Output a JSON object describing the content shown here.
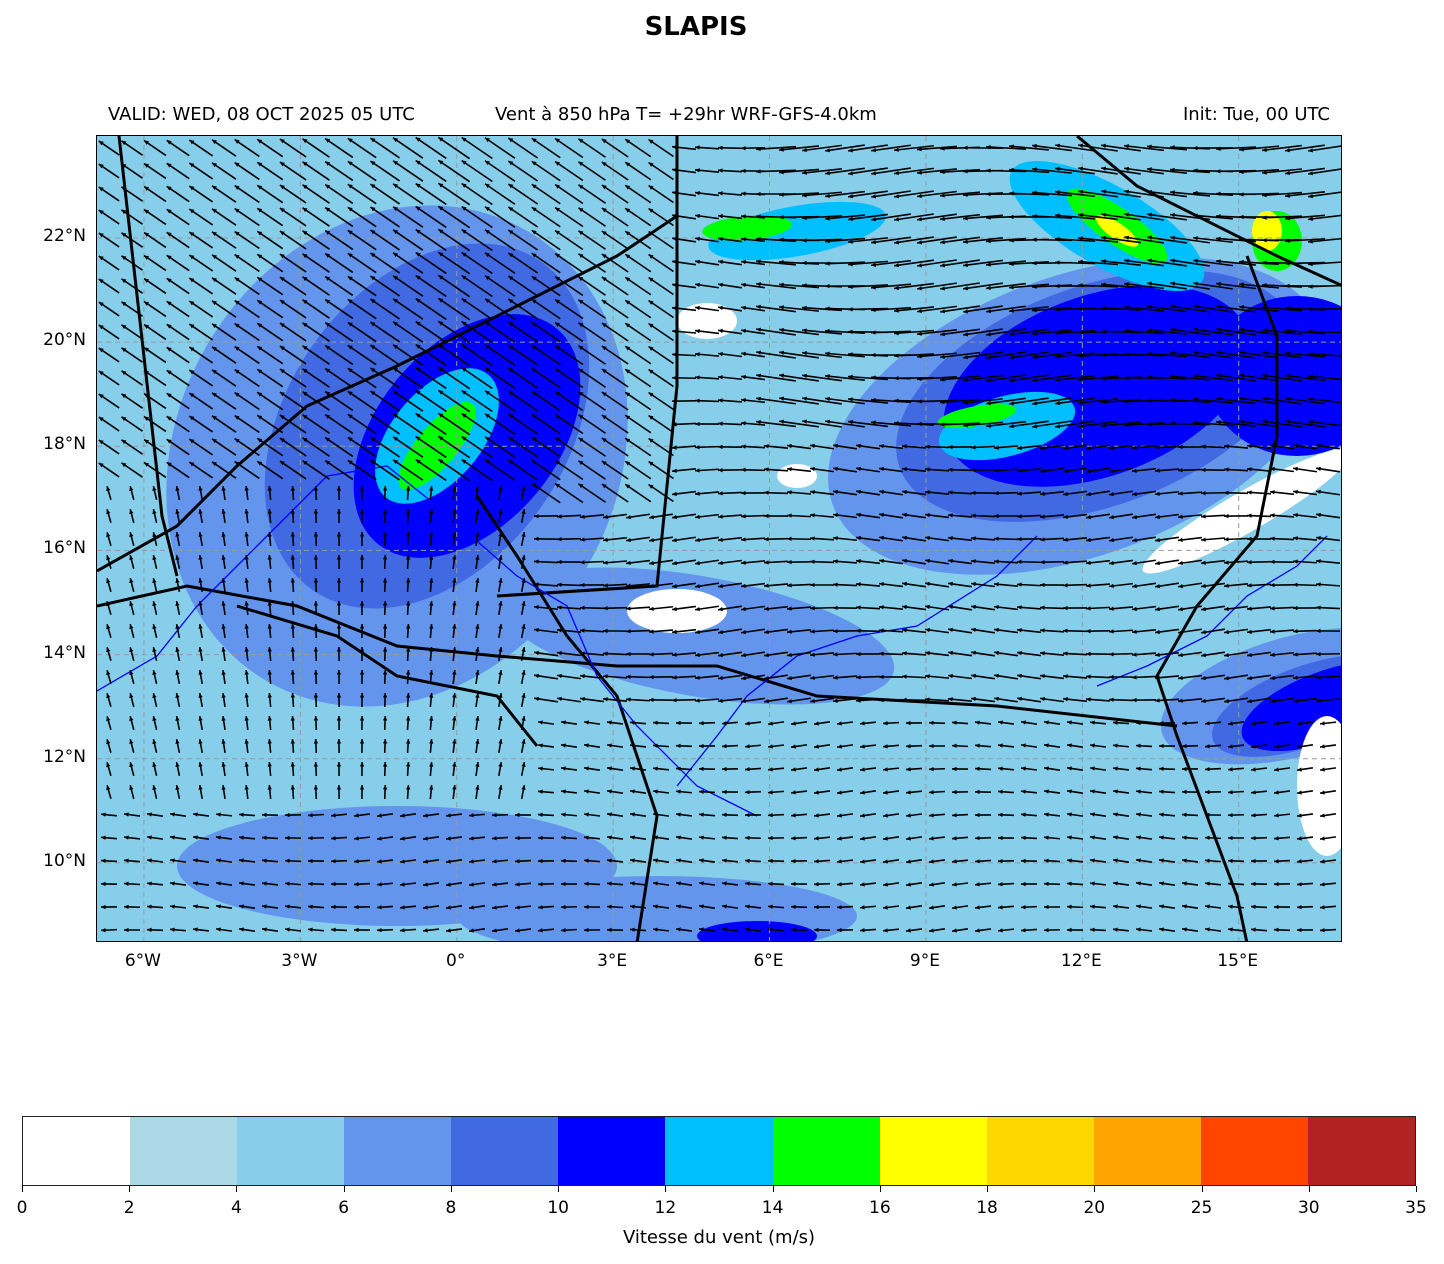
{
  "title": "SLAPIS",
  "header": {
    "valid": "VALID: WED, 08 OCT 2025 05 UTC",
    "field": "Vent à 850 hPa T= +29hr  WRF-GFS-4.0km",
    "init": "Init: Tue, 00 UTC"
  },
  "map": {
    "lon_range": [
      -6.9,
      17.0
    ],
    "lat_range": [
      8.46,
      23.96
    ],
    "lon_ticks": [
      {
        "value": -6,
        "label": "6°W"
      },
      {
        "value": -3,
        "label": "3°W"
      },
      {
        "value": 0,
        "label": "0°"
      },
      {
        "value": 3,
        "label": "3°E"
      },
      {
        "value": 6,
        "label": "6°E"
      },
      {
        "value": 9,
        "label": "9°E"
      },
      {
        "value": 12,
        "label": "12°E"
      },
      {
        "value": 15,
        "label": "15°E"
      }
    ],
    "lat_ticks": [
      {
        "value": 22,
        "label": "22°N"
      },
      {
        "value": 20,
        "label": "20°N"
      },
      {
        "value": 18,
        "label": "18°N"
      },
      {
        "value": 16,
        "label": "16°N"
      },
      {
        "value": 14,
        "label": "14°N"
      },
      {
        "value": 12,
        "label": "12°N"
      },
      {
        "value": 10,
        "label": "10°N"
      }
    ],
    "field": "wind speed shading with wind vectors",
    "gridlines": true
  },
  "colorbar": {
    "label": "Vitesse du vent (m/s)",
    "ticks": [
      "0",
      "2",
      "4",
      "6",
      "8",
      "10",
      "12",
      "14",
      "16",
      "18",
      "20",
      "25",
      "30",
      "35"
    ],
    "colors": [
      "#ffffff",
      "#add8e6",
      "#87ceeb",
      "#6495ed",
      "#4169e1",
      "#0000ff",
      "#00bfff",
      "#00ff00",
      "#ffff00",
      "#ffd700",
      "#ffa500",
      "#ff4500",
      "#b22222"
    ]
  }
}
